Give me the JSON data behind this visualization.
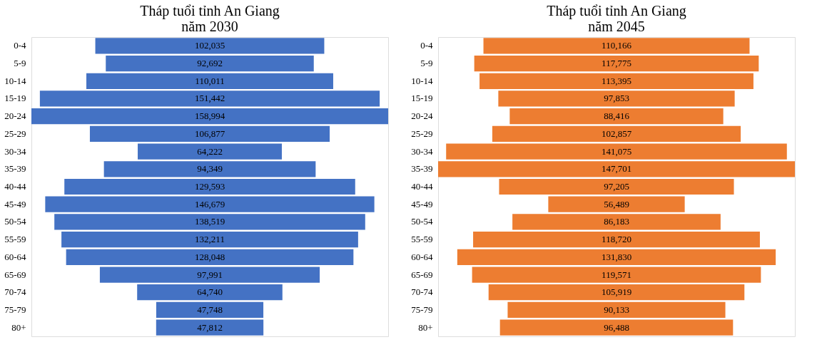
{
  "chart_data": [
    {
      "type": "other",
      "title": "Tháp tuổi tỉnh An Giang\nnăm 2030",
      "categories": [
        "0-4",
        "5-9",
        "10-14",
        "15-19",
        "20-24",
        "25-29",
        "30-34",
        "35-39",
        "40-44",
        "45-49",
        "50-54",
        "55-59",
        "60-64",
        "65-69",
        "70-74",
        "75-79",
        "80+"
      ],
      "values": [
        102035,
        92692,
        110011,
        151442,
        158994,
        106877,
        64222,
        94349,
        129593,
        146679,
        138519,
        132211,
        128048,
        97991,
        64740,
        47748,
        47812
      ],
      "value_labels": [
        "102,035",
        "92,692",
        "110,011",
        "151,442",
        "158,994",
        "106,877",
        "64,222",
        "94,349",
        "129,593",
        "146,679",
        "138,519",
        "132,211",
        "128,048",
        "97,991",
        "64,740",
        "47,748",
        "47,812"
      ],
      "color": "#4472c4"
    },
    {
      "type": "other",
      "title": "Tháp tuổi tỉnh An Giang\nnăm 2045",
      "categories": [
        "0-4",
        "5-9",
        "10-14",
        "15-19",
        "20-24",
        "25-29",
        "30-34",
        "35-39",
        "40-44",
        "45-49",
        "50-54",
        "55-59",
        "60-64",
        "65-69",
        "70-74",
        "75-79",
        "80+"
      ],
      "values": [
        110166,
        117775,
        113395,
        97853,
        88416,
        102857,
        141075,
        147701,
        97205,
        56489,
        86183,
        118720,
        131830,
        119571,
        105919,
        90133,
        96488
      ],
      "value_labels": [
        "110,166",
        "117,775",
        "113,395",
        "97,853",
        "88,416",
        "102,857",
        "141,075",
        "147,701",
        "97,205",
        "56,489",
        "86,183",
        "118,720",
        "131,830",
        "119,571",
        "105,919",
        "90,133",
        "96,488"
      ],
      "color": "#ed7d31"
    }
  ]
}
